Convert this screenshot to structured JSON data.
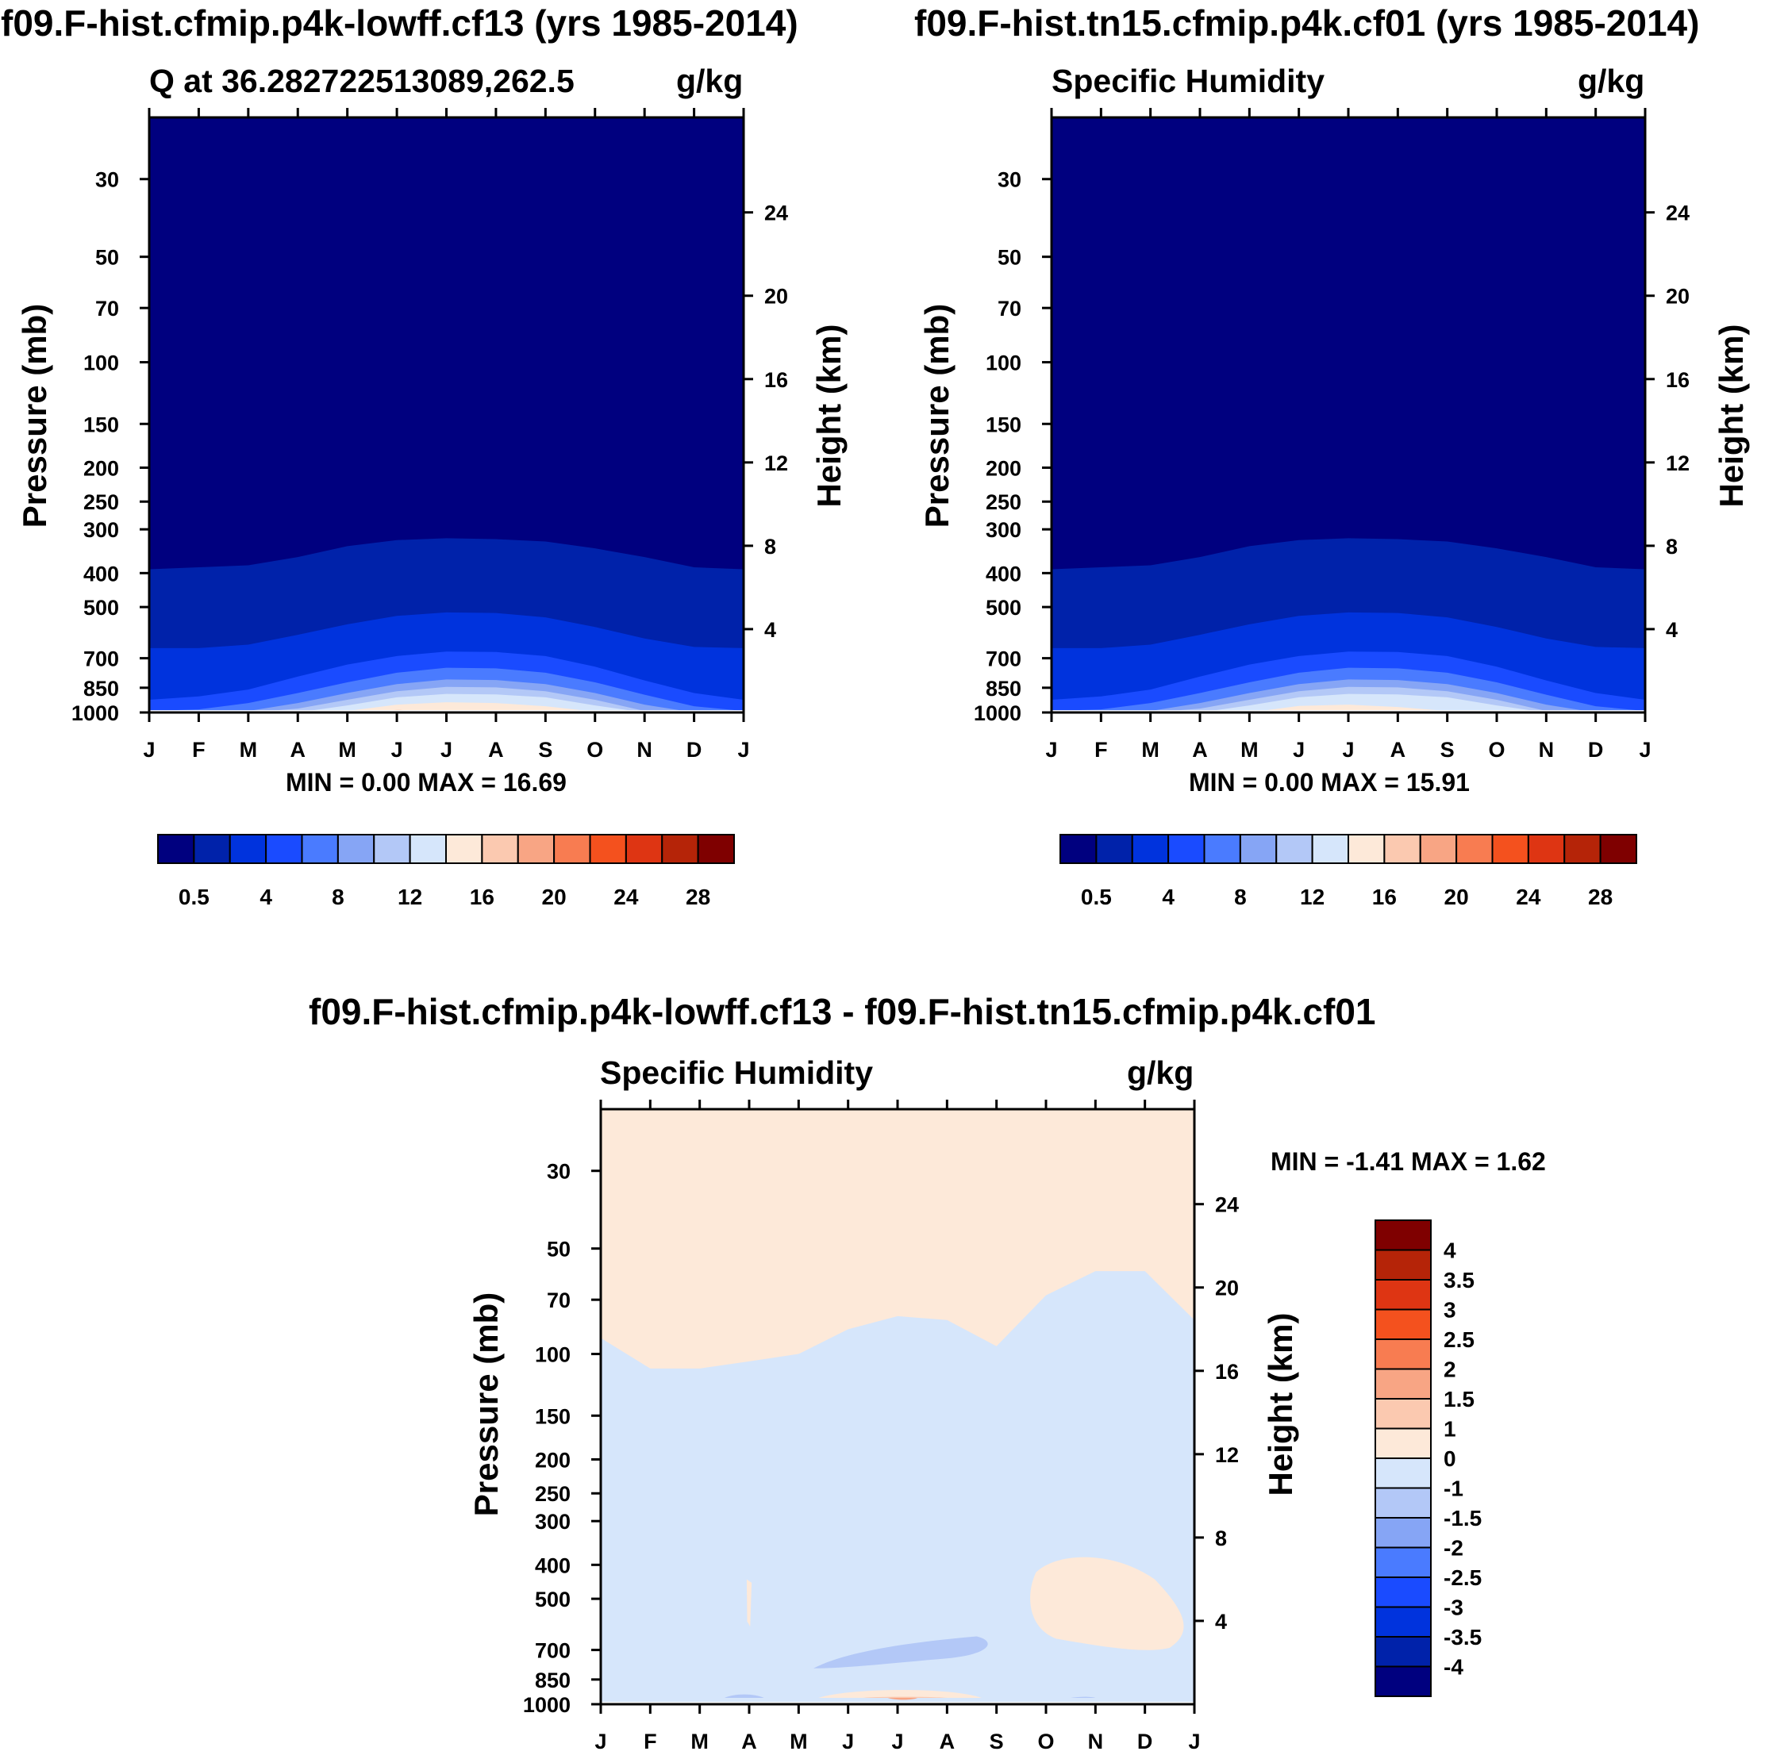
{
  "panels": [
    {
      "id": "left",
      "title": "f09.F-hist.cfmip.p4k-lowff.cf13 (yrs 1985-2014)",
      "left_string": "Q at 36.282722513089,262.5",
      "right_string": "g/kg",
      "minmax": "MIN =   0.00 MAX =  16.69"
    },
    {
      "id": "right",
      "title": "f09.F-hist.tn15.cfmip.p4k.cf01 (yrs 1985-2014)",
      "left_string": "Specific Humidity",
      "right_string": "g/kg",
      "minmax": "MIN =   0.00 MAX =  15.91"
    },
    {
      "id": "diff",
      "title": "f09.F-hist.cfmip.p4k-lowff.cf13 - f09.F-hist.tn15.cfmip.p4k.cf01",
      "left_string": "Specific Humidity",
      "right_string": "g/kg",
      "minmax": "MIN =  -1.41 MAX =   1.62"
    }
  ],
  "chart_data": [
    {
      "type": "heatmap",
      "kind": "pressure-month contour (filled)",
      "title": "f09.F-hist.cfmip.p4k-lowff.cf13 (yrs 1985-2014)",
      "variable": "Q at 36.282722513089,262.5",
      "units": "g/kg",
      "xlabel": "",
      "ylabel": "Pressure (mb)",
      "y2label": "Height (km)",
      "x_ticks": [
        "J",
        "F",
        "M",
        "A",
        "M",
        "J",
        "J",
        "A",
        "S",
        "O",
        "N",
        "D",
        "J"
      ],
      "y_ticks": [
        30,
        50,
        70,
        100,
        150,
        200,
        250,
        300,
        400,
        500,
        700,
        850,
        1000
      ],
      "y2_ticks": [
        24,
        20,
        16,
        12,
        8,
        4
      ],
      "ylim": [
        20,
        1000
      ],
      "min": 0.0,
      "max": 16.69,
      "note": "Values increase toward the surface; peak in Jun-Aug near 1000 mb."
    },
    {
      "type": "heatmap",
      "kind": "pressure-month contour (filled)",
      "title": "f09.F-hist.tn15.cfmip.p4k.cf01 (yrs 1985-2014)",
      "variable": "Specific Humidity",
      "units": "g/kg",
      "ylabel": "Pressure (mb)",
      "y2label": "Height (km)",
      "x_ticks": [
        "J",
        "F",
        "M",
        "A",
        "M",
        "J",
        "J",
        "A",
        "S",
        "O",
        "N",
        "D",
        "J"
      ],
      "y_ticks": [
        30,
        50,
        70,
        100,
        150,
        200,
        250,
        300,
        400,
        500,
        700,
        850,
        1000
      ],
      "y2_ticks": [
        24,
        20,
        16,
        12,
        8,
        4
      ],
      "ylim": [
        20,
        1000
      ],
      "min": 0.0,
      "max": 15.91
    },
    {
      "type": "heatmap",
      "kind": "pressure-month contour difference (filled)",
      "title": "f09.F-hist.cfmip.p4k-lowff.cf13 - f09.F-hist.tn15.cfmip.p4k.cf01",
      "variable": "Specific Humidity",
      "units": "g/kg",
      "ylabel": "Pressure (mb)",
      "y2label": "Height (km)",
      "x_ticks": [
        "J",
        "F",
        "M",
        "A",
        "M",
        "J",
        "J",
        "A",
        "S",
        "O",
        "N",
        "D",
        "J"
      ],
      "y_ticks": [
        30,
        50,
        70,
        100,
        150,
        200,
        250,
        300,
        400,
        500,
        700,
        850,
        1000
      ],
      "y2_ticks": [
        24,
        20,
        16,
        12,
        8,
        4
      ],
      "ylim": [
        20,
        1000
      ],
      "min": -1.41,
      "max": 1.62
    }
  ],
  "colorbar_main": {
    "colors": [
      "#00007f",
      "#0022aa",
      "#0033dd",
      "#1a4bff",
      "#4a7bff",
      "#86a5f5",
      "#b3c8f7",
      "#d6e6fb",
      "#fde9d9",
      "#fbc9b0",
      "#f8a584",
      "#f87c51",
      "#f4511e",
      "#de3513",
      "#b52408",
      "#7f0000"
    ],
    "labels": [
      "0.5",
      "4",
      "8",
      "12",
      "16",
      "20",
      "24",
      "28"
    ]
  },
  "colorbar_diff": {
    "colors": [
      "#7f0000",
      "#b52408",
      "#de3513",
      "#f4511e",
      "#f87c51",
      "#f8a584",
      "#fbc9b0",
      "#fde9d9",
      "#d6e6fb",
      "#b3c8f7",
      "#86a5f5",
      "#4a7bff",
      "#1a4bff",
      "#0033dd",
      "#0022aa",
      "#00007f"
    ],
    "labels": [
      "4",
      "3.5",
      "3",
      "2.5",
      "2",
      "1.5",
      "1",
      "0",
      "-1",
      "-1.5",
      "-2",
      "-2.5",
      "-3",
      "-3.5",
      "-4"
    ]
  }
}
